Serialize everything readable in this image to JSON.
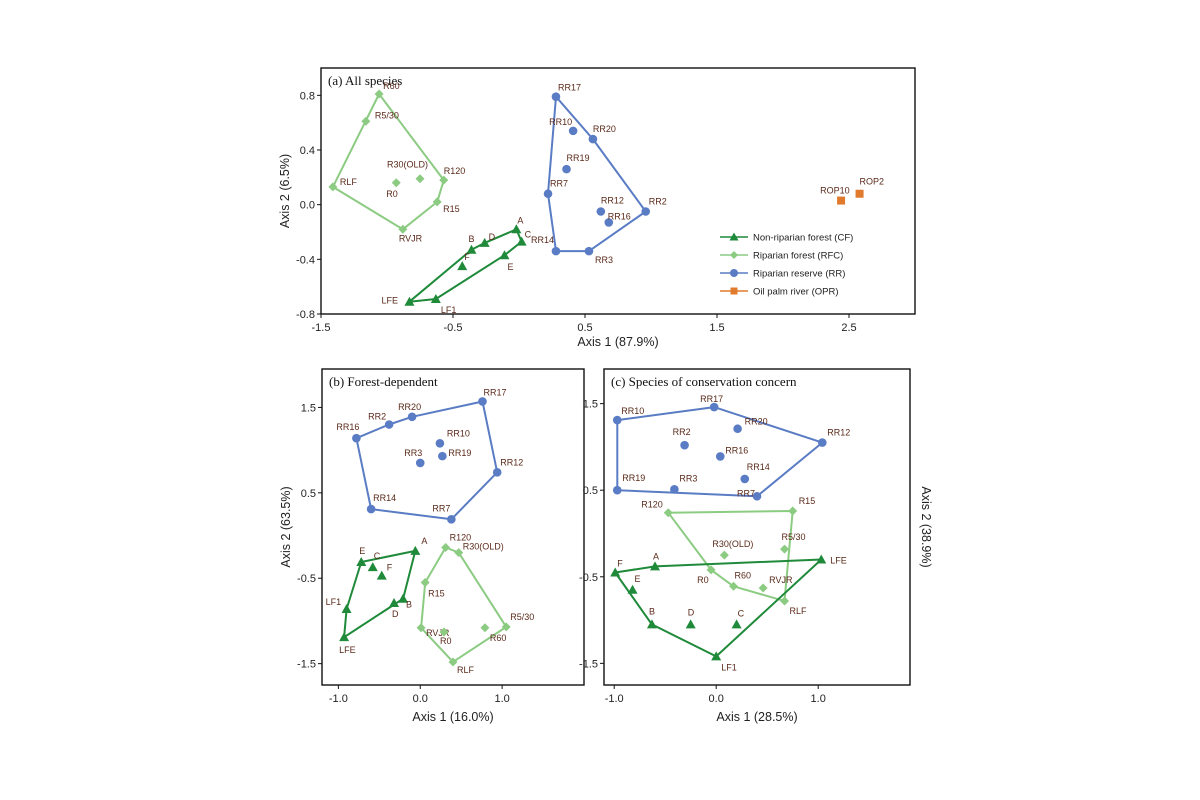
{
  "colors": {
    "CF": "#1f8a3a",
    "RFC": "#8ccb82",
    "RR": "#5a7cc4",
    "OPR": "#e07b2e"
  },
  "chart_data": [
    {
      "type": "scatter",
      "title": "(a) All species",
      "xlabel": "Axis 1 (87.9%)",
      "ylabel": "Axis 2 (6.5%)",
      "xlim": [
        -1.5,
        3.0
      ],
      "ylim": [
        -0.8,
        1.0
      ],
      "xticks": [
        "-1.5",
        "-0.5",
        "0.5",
        "1.5",
        "2.5"
      ],
      "yticks": [
        "0.8",
        "0.4",
        "0.0",
        "-0.4",
        "-0.8"
      ],
      "legend_position": "right",
      "legend": [
        {
          "key": "CF",
          "label": "Non-riparian forest (CF)"
        },
        {
          "key": "RFC",
          "label": "Riparian forest (RFC)"
        },
        {
          "key": "RR",
          "label": "Riparian reserve (RR)"
        },
        {
          "key": "OPR",
          "label": "Oil palm river (OPR)"
        }
      ],
      "series": [
        {
          "key": "CF",
          "hull": true,
          "points": [
            {
              "label": "A",
              "x": -0.02,
              "y": -0.18
            },
            {
              "label": "C",
              "x": 0.02,
              "y": -0.27
            },
            {
              "label": "E",
              "x": -0.11,
              "y": -0.37
            },
            {
              "label": "D",
              "x": -0.26,
              "y": -0.28
            },
            {
              "label": "B",
              "x": -0.36,
              "y": -0.33
            },
            {
              "label": "F",
              "x": -0.43,
              "y": -0.45
            },
            {
              "label": "LFE",
              "x": -0.83,
              "y": -0.71
            },
            {
              "label": "LF1",
              "x": -0.63,
              "y": -0.69
            }
          ]
        },
        {
          "key": "RFC",
          "hull": true,
          "points": [
            {
              "label": "R60",
              "x": -1.06,
              "y": 0.81
            },
            {
              "label": "R5/30",
              "x": -1.16,
              "y": 0.61
            },
            {
              "label": "RLF",
              "x": -1.41,
              "y": 0.13
            },
            {
              "label": "R0",
              "x": -0.93,
              "y": 0.16
            },
            {
              "label": "R30(OLD)",
              "x": -0.75,
              "y": 0.19
            },
            {
              "label": "R120",
              "x": -0.57,
              "y": 0.18
            },
            {
              "label": "R15",
              "x": -0.62,
              "y": 0.02
            },
            {
              "label": "RVJR",
              "x": -0.88,
              "y": -0.18
            }
          ]
        },
        {
          "key": "RR",
          "hull": true,
          "points": [
            {
              "label": "RR17",
              "x": 0.28,
              "y": 0.79
            },
            {
              "label": "RR10",
              "x": 0.41,
              "y": 0.54
            },
            {
              "label": "RR20",
              "x": 0.56,
              "y": 0.48
            },
            {
              "label": "RR19",
              "x": 0.36,
              "y": 0.26
            },
            {
              "label": "RR7",
              "x": 0.22,
              "y": 0.08
            },
            {
              "label": "RR12",
              "x": 0.62,
              "y": -0.05
            },
            {
              "label": "RR16",
              "x": 0.68,
              "y": -0.13
            },
            {
              "label": "RR2",
              "x": 0.96,
              "y": -0.05
            },
            {
              "label": "RR14",
              "x": 0.28,
              "y": -0.34
            },
            {
              "label": "RR3",
              "x": 0.53,
              "y": -0.34
            }
          ]
        },
        {
          "key": "OPR",
          "hull": false,
          "points": [
            {
              "label": "ROP10",
              "x": 2.44,
              "y": 0.03
            },
            {
              "label": "ROP2",
              "x": 2.58,
              "y": 0.08
            }
          ]
        }
      ]
    },
    {
      "type": "scatter",
      "title": "(b) Forest-dependent",
      "xlabel": "Axis 1 (16.0%)",
      "ylabel": "Axis 2 (63.5%)",
      "xlim": [
        -1.2,
        2.0
      ],
      "ylim": [
        -1.75,
        1.95
      ],
      "xticks": [
        "-1.0",
        "0.0",
        "1.0"
      ],
      "yticks": [
        "1.5",
        "0.5",
        "-0.5",
        "-1.5"
      ],
      "series": [
        {
          "key": "RR",
          "hull": true,
          "points": [
            {
              "label": "RR17",
              "x": 0.76,
              "y": 1.57
            },
            {
              "label": "RR20",
              "x": -0.1,
              "y": 1.39
            },
            {
              "label": "RR2",
              "x": -0.38,
              "y": 1.3
            },
            {
              "label": "RR16",
              "x": -0.78,
              "y": 1.14
            },
            {
              "label": "RR10",
              "x": 0.24,
              "y": 1.08
            },
            {
              "label": "RR19",
              "x": 0.27,
              "y": 0.93
            },
            {
              "label": "RR3",
              "x": 0.0,
              "y": 0.85
            },
            {
              "label": "RR12",
              "x": 0.94,
              "y": 0.74
            },
            {
              "label": "RR14",
              "x": -0.6,
              "y": 0.31
            },
            {
              "label": "RR7",
              "x": 0.38,
              "y": 0.19
            }
          ]
        },
        {
          "key": "CF",
          "hull": true,
          "points": [
            {
              "label": "A",
              "x": -0.06,
              "y": -0.18
            },
            {
              "label": "E",
              "x": -0.72,
              "y": -0.31
            },
            {
              "label": "C",
              "x": -0.58,
              "y": -0.37
            },
            {
              "label": "F",
              "x": -0.47,
              "y": -0.47
            },
            {
              "label": "LF1",
              "x": -0.9,
              "y": -0.86
            },
            {
              "label": "D",
              "x": -0.32,
              "y": -0.79
            },
            {
              "label": "B",
              "x": -0.21,
              "y": -0.74
            },
            {
              "label": "LFE",
              "x": -0.93,
              "y": -1.19
            }
          ]
        },
        {
          "key": "RFC",
          "hull": true,
          "points": [
            {
              "label": "R120",
              "x": 0.31,
              "y": -0.14
            },
            {
              "label": "R30(OLD)",
              "x": 0.47,
              "y": -0.2
            },
            {
              "label": "R15",
              "x": 0.06,
              "y": -0.55
            },
            {
              "label": "R5/30",
              "x": 1.05,
              "y": -1.07
            },
            {
              "label": "RVJR",
              "x": 0.01,
              "y": -1.08
            },
            {
              "label": "R0",
              "x": 0.29,
              "y": -1.13
            },
            {
              "label": "R60",
              "x": 0.79,
              "y": -1.08
            },
            {
              "label": "RLF",
              "x": 0.4,
              "y": -1.48
            }
          ]
        }
      ]
    },
    {
      "type": "scatter",
      "title": "(c) Species of conservation concern",
      "xlabel": "Axis 1 (28.5%)",
      "ylabel": "Axis 2 (38.9%)",
      "xlim": [
        -1.1,
        1.9
      ],
      "ylim": [
        -1.75,
        1.9
      ],
      "xticks": [
        "-1.0",
        "0.0",
        "1.0"
      ],
      "yticks": [
        "1.5",
        "0.5",
        "-0.5",
        "-1.5"
      ],
      "series": [
        {
          "key": "RR",
          "hull": true,
          "points": [
            {
              "label": "RR10",
              "x": -0.97,
              "y": 1.31
            },
            {
              "label": "RR17",
              "x": -0.02,
              "y": 1.46
            },
            {
              "label": "RR12",
              "x": 1.04,
              "y": 1.05
            },
            {
              "label": "RR2",
              "x": -0.31,
              "y": 1.02
            },
            {
              "label": "RR20",
              "x": 0.21,
              "y": 1.21
            },
            {
              "label": "RR16",
              "x": 0.04,
              "y": 0.89
            },
            {
              "label": "RR14",
              "x": 0.28,
              "y": 0.63
            },
            {
              "label": "RR19",
              "x": -0.97,
              "y": 0.5
            },
            {
              "label": "RR3",
              "x": -0.41,
              "y": 0.51
            },
            {
              "label": "RR7",
              "x": 0.4,
              "y": 0.43
            }
          ]
        },
        {
          "key": "RFC",
          "hull": true,
          "points": [
            {
              "label": "R120",
              "x": -0.47,
              "y": 0.24
            },
            {
              "label": "R15",
              "x": 0.75,
              "y": 0.26
            },
            {
              "label": "R30(OLD)",
              "x": 0.08,
              "y": -0.25
            },
            {
              "label": "R5/30",
              "x": 0.67,
              "y": -0.18
            },
            {
              "label": "R0",
              "x": -0.05,
              "y": -0.42
            },
            {
              "label": "R60",
              "x": 0.17,
              "y": -0.61
            },
            {
              "label": "RVJR",
              "x": 0.46,
              "y": -0.63
            },
            {
              "label": "RLF",
              "x": 0.67,
              "y": -0.78
            }
          ]
        },
        {
          "key": "CF",
          "hull": true,
          "points": [
            {
              "label": "F",
              "x": -0.99,
              "y": -0.45
            },
            {
              "label": "A",
              "x": -0.6,
              "y": -0.38
            },
            {
              "label": "LFE",
              "x": 1.03,
              "y": -0.3
            },
            {
              "label": "E",
              "x": -0.82,
              "y": -0.65
            },
            {
              "label": "B",
              "x": -0.63,
              "y": -1.05
            },
            {
              "label": "D",
              "x": -0.25,
              "y": -1.05
            },
            {
              "label": "C",
              "x": 0.2,
              "y": -1.05
            },
            {
              "label": "LF1",
              "x": 0.0,
              "y": -1.42
            }
          ]
        }
      ]
    }
  ]
}
